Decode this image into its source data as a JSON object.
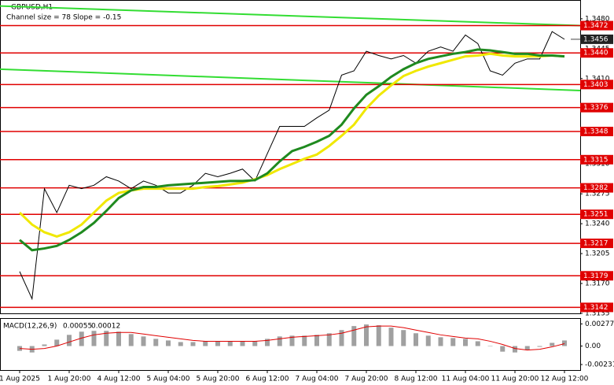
{
  "chart_data": [
    {
      "type": "line",
      "title": "GBPUSD,H1",
      "subtitle": "Channel size = 78 Slope = -0.15",
      "categories": [
        "1 Aug 2025",
        null,
        null,
        null,
        "1 Aug 20:00",
        null,
        null,
        null,
        "4 Aug 12:00",
        null,
        null,
        null,
        "5 Aug 04:00",
        null,
        null,
        null,
        "5 Aug 20:00",
        null,
        null,
        null,
        "6 Aug 12:00",
        null,
        null,
        null,
        "7 Aug 04:00",
        null,
        null,
        null,
        "7 Aug 20:00",
        null,
        null,
        null,
        "8 Aug 12:00",
        null,
        null,
        null,
        "11 Aug 04:00",
        null,
        null,
        null,
        "11 Aug 20:00",
        null,
        null,
        null,
        "12 Aug 12:00"
      ],
      "series": [
        {
          "color": "#000000",
          "values": [
            1.3184,
            1.3152,
            1.3281,
            1.3253,
            1.3285,
            1.3281,
            1.3285,
            1.3295,
            1.329,
            1.3281,
            1.329,
            1.3285,
            1.3276,
            1.3276,
            1.3285,
            1.3299,
            1.3295,
            1.3299,
            1.3304,
            1.329,
            1.3322,
            1.3354,
            1.3354,
            1.3354,
            1.3364,
            1.3373,
            1.3414,
            1.3419,
            1.3442,
            1.3437,
            1.3433,
            1.3437,
            1.3428,
            1.3442,
            1.3447,
            1.3442,
            1.3461,
            1.3451,
            1.3419,
            1.3414,
            1.3428,
            1.3433,
            1.3433,
            1.3465,
            1.3456
          ]
        },
        {
          "color": "#f0e800",
          "values": [
            1.3253,
            1.3239,
            1.323,
            1.3225,
            1.323,
            1.3239,
            1.3253,
            1.3267,
            1.3276,
            1.3279,
            1.3281,
            1.3281,
            1.3281,
            1.3281,
            1.3281,
            1.3283,
            1.3284,
            1.3286,
            1.3288,
            1.3292,
            1.3297,
            1.3304,
            1.331,
            1.3316,
            1.3321,
            1.3331,
            1.3343,
            1.3356,
            1.3375,
            1.339,
            1.3402,
            1.3413,
            1.3419,
            1.3424,
            1.3428,
            1.3432,
            1.3436,
            1.3437,
            1.3439,
            1.3437,
            1.3436,
            1.3436,
            1.3436,
            1.3437,
            1.3436
          ]
        },
        {
          "color": "#1f8a1f",
          "values": [
            1.3221,
            1.3209,
            1.3211,
            1.3214,
            1.3221,
            1.323,
            1.3241,
            1.3255,
            1.327,
            1.3279,
            1.3283,
            1.3283,
            1.3285,
            1.3286,
            1.3287,
            1.3288,
            1.3289,
            1.329,
            1.329,
            1.3291,
            1.3299,
            1.3313,
            1.3325,
            1.333,
            1.3336,
            1.3343,
            1.3356,
            1.3375,
            1.3391,
            1.3401,
            1.3412,
            1.3421,
            1.3428,
            1.3433,
            1.3436,
            1.3439,
            1.3441,
            1.3444,
            1.3443,
            1.3441,
            1.3439,
            1.3439,
            1.3437,
            1.3437,
            1.3436
          ]
        }
      ],
      "channel": {
        "color": "#33dd33",
        "upper": [
          1.3495,
          1.3472
        ],
        "lower": [
          1.3421,
          1.3396
        ]
      },
      "levels": [
        1.3472,
        {
          "value": 1.344,
          "label": "1.3440"
        },
        1.3403,
        1.3376,
        1.3348,
        1.3315,
        1.3282,
        1.3251,
        1.3217,
        1.3179,
        1.3142
      ],
      "current_price": 1.3456,
      "ylim": [
        1.3135,
        1.3502
      ],
      "yticks": [
        {
          "value": 1.348,
          "label": "1.3480"
        },
        1.3445,
        {
          "value": 1.341,
          "label": "1.3410"
        },
        {
          "value": 1.331,
          "label": "1.3310"
        },
        1.3275,
        {
          "value": 1.324,
          "label": "1.3240"
        },
        1.3205,
        {
          "value": 1.317,
          "label": "1.3170"
        },
        1.3135
      ]
    },
    {
      "type": "macd",
      "title": "MACD(12,26,9)",
      "current_values": [
        0.00055,
        0.00012
      ],
      "series": [
        {
          "color": "#a0a0a0",
          "values": [
            -0.0006,
            -0.0008,
            0.0002,
            0.0008,
            0.0014,
            0.0018,
            0.0019,
            0.0019,
            0.0018,
            0.0015,
            0.0012,
            0.0009,
            0.0007,
            0.0005,
            0.0005,
            0.0006,
            0.0006,
            0.0006,
            0.0006,
            0.0006,
            0.0009,
            0.0012,
            0.0013,
            0.0013,
            0.0014,
            0.0016,
            0.002,
            0.0025,
            0.0027,
            0.0026,
            0.0023,
            0.002,
            0.0016,
            0.0013,
            0.0011,
            0.001,
            0.0009,
            0.0006,
            0,
            -0.0007,
            -0.0008,
            -0.0005,
            -0.0001,
            0.0004,
            0.0007
          ]
        },
        {
          "color": "#e00000",
          "values": [
            -0.0003,
            -0.0004,
            -0.0003,
            0,
            0.0005,
            0.001,
            0.0014,
            0.0016,
            0.0017,
            0.0017,
            0.0015,
            0.0013,
            0.0011,
            0.0009,
            0.0007,
            0.0006,
            0.0006,
            0.0006,
            0.0006,
            0.0006,
            0.0007,
            0.0009,
            0.0011,
            0.0012,
            0.0013,
            0.0014,
            0.0016,
            0.002,
            0.0024,
            0.0025,
            0.0025,
            0.0023,
            0.002,
            0.0017,
            0.0014,
            0.0012,
            0.001,
            0.0009,
            0.0006,
            0.0002,
            -0.0003,
            -0.0005,
            -0.0004,
            -0.0001,
            0.0003
          ]
        }
      ],
      "ylim": [
        -0.003,
        0.0034
      ],
      "yticks": [
        0.00277,
        {
          "value": 0,
          "label": "0.00"
        },
        -0.00231
      ]
    }
  ]
}
